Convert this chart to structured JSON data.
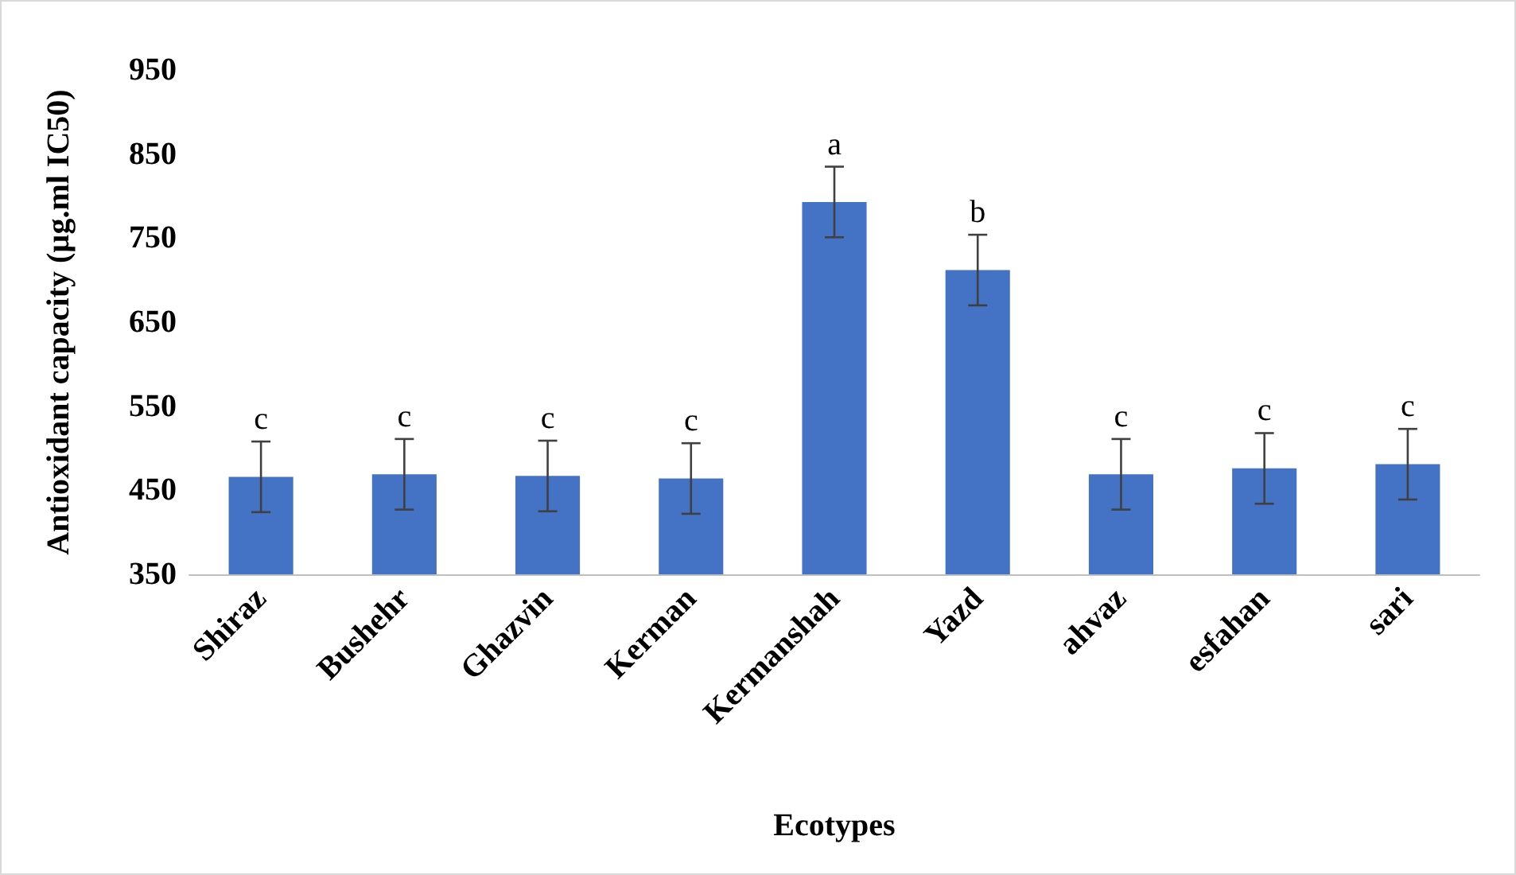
{
  "chart_data": {
    "type": "bar",
    "xlabel": "Ecotypes",
    "ylabel": "Antioxidant capacity (µg.ml IC50)",
    "categories": [
      "Shiraz",
      "Bushehr",
      "Ghazvin",
      "Kerman",
      "Kermanshah",
      "Yazd",
      "ahvaz",
      "esfahan",
      "sari"
    ],
    "values": [
      466,
      469,
      467,
      464,
      793,
      712,
      469,
      476,
      481
    ],
    "errors": [
      42,
      42,
      42,
      42,
      42,
      42,
      42,
      42,
      42
    ],
    "color": "#4472c4",
    "ylim": [
      350,
      950
    ],
    "yticks": [
      350,
      450,
      550,
      650,
      750,
      850,
      950
    ],
    "grid": false,
    "annotations": [
      {
        "text": "c",
        "x": "Shiraz",
        "y": 508
      },
      {
        "text": "c",
        "x": "Bushehr",
        "y": 511
      },
      {
        "text": "c",
        "x": "Ghazvin",
        "y": 509
      },
      {
        "text": "c",
        "x": "Kerman",
        "y": 506
      },
      {
        "text": "a",
        "x": "Kermanshah",
        "y": 835
      },
      {
        "text": "b",
        "x": "Yazd",
        "y": 754
      },
      {
        "text": "c",
        "x": "ahvaz",
        "y": 511
      },
      {
        "text": "c",
        "x": "esfahan",
        "y": 518
      },
      {
        "text": "c",
        "x": "sari",
        "y": 523
      }
    ]
  }
}
